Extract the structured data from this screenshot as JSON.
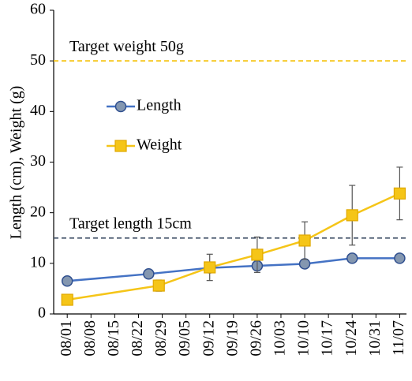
{
  "chart_data": {
    "type": "line",
    "ylabel": "Length (cm), Weight (g)",
    "xlim": [
      "07/28",
      "11/09"
    ],
    "xticks": [
      "08/01",
      "08/08",
      "08/15",
      "08/22",
      "08/29",
      "09/05",
      "09/12",
      "09/19",
      "09/26",
      "10/03",
      "10/10",
      "10/17",
      "10/24",
      "10/31",
      "11/07"
    ],
    "ylim": [
      0,
      60
    ],
    "yticks": [
      0,
      10,
      20,
      30,
      40,
      50,
      60
    ],
    "grid": false,
    "series": [
      {
        "name": "Length",
        "color": "#4472c4",
        "marker": "circle",
        "x": [
          "08/01",
          "08/25",
          "09/12",
          "09/26",
          "10/10",
          "10/24",
          "11/07"
        ],
        "values": [
          6.5,
          7.9,
          9.1,
          9.5,
          9.9,
          11,
          11
        ],
        "errors": [
          0.3,
          0.4,
          0.6,
          0.9,
          0.7,
          0.4,
          0.4
        ]
      },
      {
        "name": "Weight",
        "color": "#f5c518",
        "marker": "square",
        "x": [
          "08/01",
          "08/28",
          "09/12",
          "09/26",
          "10/10",
          "10/24",
          "11/07"
        ],
        "values": [
          2.8,
          5.6,
          9.2,
          11.7,
          14.5,
          19.5,
          23.8
        ],
        "errors": [
          1,
          1.1,
          2.6,
          3.5,
          3.7,
          5.9,
          5.2
        ]
      }
    ],
    "reference_lines": [
      {
        "label": "Target weight 50g",
        "value": 50,
        "color": "#f5c518"
      },
      {
        "label": "Target length 15cm",
        "value": 15,
        "color": "#44546a"
      }
    ]
  }
}
